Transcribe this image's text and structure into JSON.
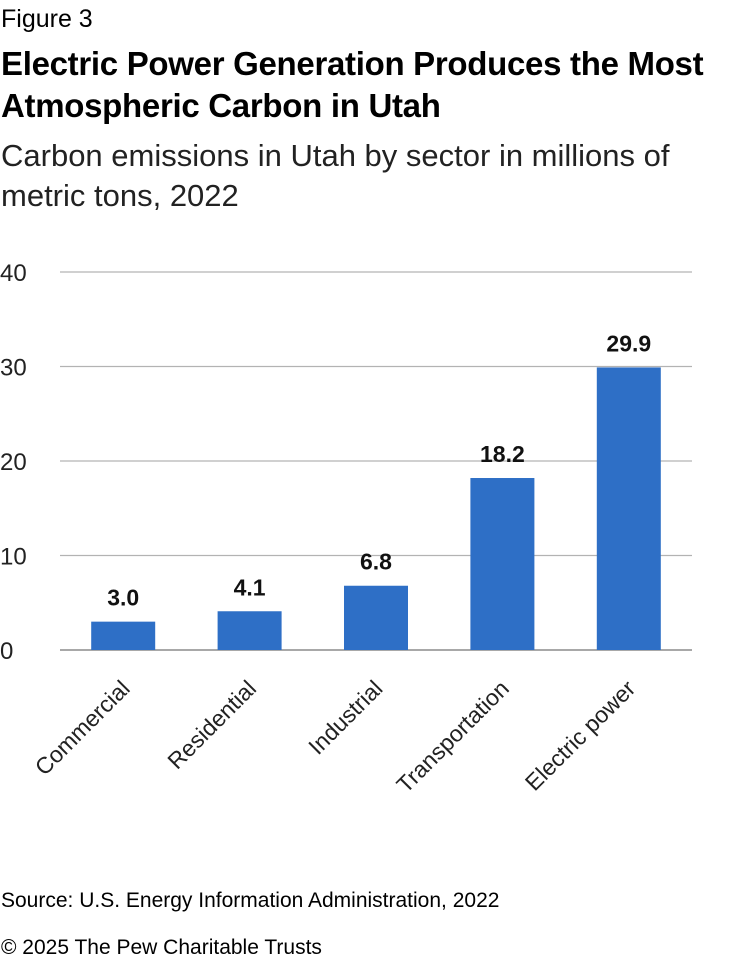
{
  "figure_label": "Figure 3",
  "title": "Electric Power Generation Produces the Most Atmospheric Carbon in Utah",
  "subtitle": "Carbon emissions in Utah by sector in millions of metric tons, 2022",
  "source": "Source: U.S. Energy Information Administration, 2022",
  "copyright": "© 2025 The Pew Charitable Trusts",
  "colors": {
    "bar": "#2e6fc6",
    "grid": "#b3b3b3",
    "axis": "#8c8c8c"
  },
  "chart_data": {
    "type": "bar",
    "categories": [
      "Commercial",
      "Residential",
      "Industrial",
      "Transportation",
      "Electric power"
    ],
    "values": [
      3.0,
      4.1,
      6.8,
      18.2,
      29.9
    ],
    "value_labels": [
      "3.0",
      "4.1",
      "6.8",
      "18.2",
      "29.9"
    ],
    "ylim": [
      0,
      40
    ],
    "yticks": [
      "0",
      "10",
      "20",
      "30",
      "40"
    ],
    "grid": true,
    "xlabel": "",
    "ylabel": ""
  }
}
